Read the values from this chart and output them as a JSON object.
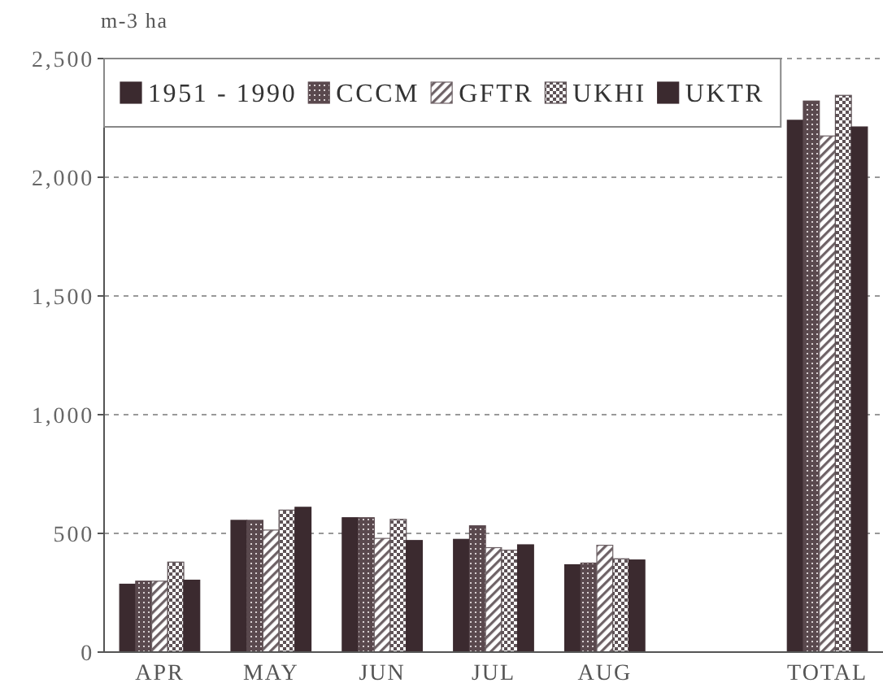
{
  "chart_data": {
    "type": "bar",
    "ylabel": "m-3 ha",
    "categories": [
      "APR",
      "MAY",
      "JUN",
      "JUL",
      "AUG",
      null,
      "TOTAL"
    ],
    "series": [
      {
        "name": "1951 - 1990",
        "color": "#3b2a2f",
        "values": [
          286,
          555,
          566,
          475,
          368,
          null,
          2240
        ]
      },
      {
        "name": "CCCM",
        "color": "#5a494e",
        "values": [
          299,
          555,
          566,
          532,
          375,
          null,
          2321
        ]
      },
      {
        "name": "GFTR",
        "color": "#6e6266",
        "values": [
          299,
          514,
          479,
          440,
          450,
          null,
          2174
        ]
      },
      {
        "name": "UKHI",
        "color": "#5e5256",
        "values": [
          379,
          598,
          559,
          429,
          393,
          null,
          2345
        ]
      },
      {
        "name": "UKTR",
        "color": "#3b2a2f",
        "values": [
          303,
          610,
          470,
          452,
          388,
          null,
          2212
        ]
      }
    ],
    "ylim": [
      0,
      2500
    ],
    "yticks": [
      0,
      500,
      {
        "value": 1000,
        "label": "1,000"
      },
      {
        "value": 1500,
        "label": "1,500"
      },
      {
        "value": 2000,
        "label": "2,000"
      },
      {
        "value": 2500,
        "label": "2,500"
      }
    ],
    "grid": "y",
    "legend": "top left"
  }
}
